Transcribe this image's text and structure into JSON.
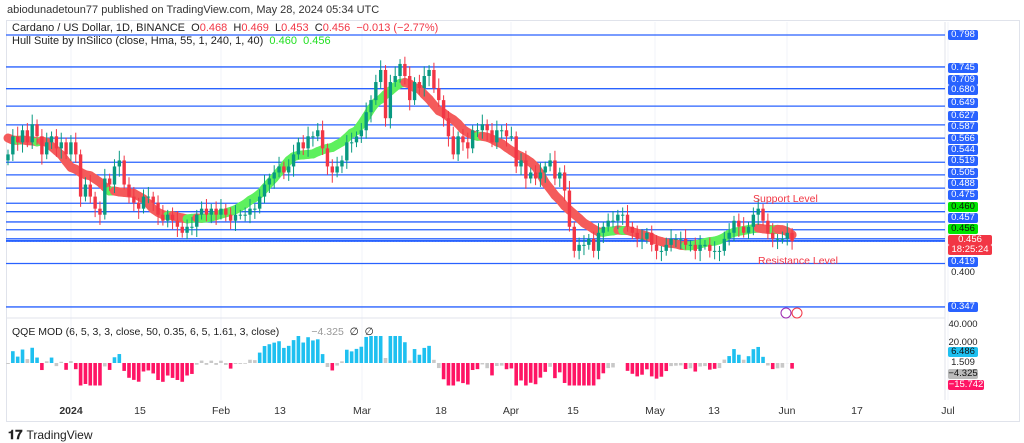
{
  "publisher_line": "abiodunadetoun77 published on TradingView.com, May 28, 2024 05:34 UTC",
  "symbol": {
    "name": "Cardano / US Dollar, 1D, BINANCE",
    "o_label": "O",
    "o": "0.468",
    "h_label": "H",
    "h": "0.469",
    "l_label": "L",
    "l": "0.453",
    "c_label": "C",
    "c": "0.456",
    "change": "−0.013 (−2.77%)"
  },
  "hull": {
    "name": "Hull Suite by InSilico (close, Hma, 55, 1, 240, 1, 40)",
    "v1": "0.460",
    "v2": "0.456"
  },
  "qqe": {
    "name": "QQE MOD (6, 5, 3, 3, close, 50, 0.35, 6, 5, 1.61, 3, close)",
    "value": "−4.325",
    "na1": "∅",
    "na2": "∅"
  },
  "annotations": {
    "support": "Support Level",
    "resistance": "Resistance Level"
  },
  "price_labels": [
    {
      "text": "0.798",
      "kind": "level"
    },
    {
      "text": "0.745",
      "kind": "level"
    },
    {
      "text": "0.709",
      "kind": "level"
    },
    {
      "text": "0.680",
      "kind": "level"
    },
    {
      "text": "0.649",
      "kind": "level"
    },
    {
      "text": "0.627",
      "kind": "level"
    },
    {
      "text": "0.587",
      "kind": "level"
    },
    {
      "text": "0.566",
      "kind": "level"
    },
    {
      "text": "0.544",
      "kind": "level"
    },
    {
      "text": "0.519",
      "kind": "level"
    },
    {
      "text": "0.505",
      "kind": "level"
    },
    {
      "text": "0.488",
      "kind": "level"
    },
    {
      "text": "0.475",
      "kind": "level"
    },
    {
      "text": "0.460",
      "kind": "hull"
    },
    {
      "text": "0.457",
      "kind": "level"
    },
    {
      "text": "0.456",
      "kind": "hull"
    },
    {
      "text": "0.456",
      "kind": "last"
    },
    {
      "text": "18:25:24",
      "kind": "countdown"
    },
    {
      "text": "0.419",
      "kind": "level"
    },
    {
      "text": "0.400",
      "kind": "axis"
    },
    {
      "text": "0.347",
      "kind": "level"
    }
  ],
  "qqe_labels": [
    {
      "text": "40.000",
      "kind": "axis"
    },
    {
      "text": "20.000",
      "kind": "axis"
    },
    {
      "text": "6.486",
      "kind": "blue"
    },
    {
      "text": "1.509",
      "kind": "axis"
    },
    {
      "text": "−4.325",
      "kind": "gray"
    },
    {
      "text": "−15.742",
      "kind": "pink"
    }
  ],
  "x_ticks": [
    "2024",
    "15",
    "Feb",
    "13",
    "Mar",
    "18",
    "Apr",
    "15",
    "May",
    "13",
    "Jun",
    "17",
    "Jul"
  ],
  "footer": "TradingView",
  "colors": {
    "up": "#089981",
    "down": "#f23645",
    "level": "#2962ff",
    "hull_up": "#5ef05e",
    "hull_down": "#f45b5b",
    "qqe_blue": "#1ec0f0",
    "qqe_pink": "#ff1464",
    "qqe_gray": "#c8c8c8"
  },
  "chart_data": {
    "type": "candlestick",
    "title": "Cardano / US Dollar, 1D, BINANCE",
    "start_date": "2023-12-18",
    "closes": [
      0.6,
      0.63,
      0.62,
      0.64,
      0.62,
      0.65,
      0.63,
      0.6,
      0.62,
      0.63,
      0.61,
      0.62,
      0.6,
      0.62,
      0.6,
      0.53,
      0.55,
      0.53,
      0.51,
      0.5,
      0.56,
      0.55,
      0.58,
      0.59,
      0.55,
      0.53,
      0.52,
      0.51,
      0.53,
      0.53,
      0.52,
      0.5,
      0.49,
      0.5,
      0.49,
      0.48,
      0.47,
      0.48,
      0.48,
      0.5,
      0.51,
      0.5,
      0.51,
      0.5,
      0.51,
      0.5,
      0.49,
      0.5,
      0.5,
      0.5,
      0.51,
      0.51,
      0.53,
      0.55,
      0.56,
      0.57,
      0.58,
      0.57,
      0.58,
      0.6,
      0.62,
      0.61,
      0.63,
      0.63,
      0.64,
      0.61,
      0.58,
      0.57,
      0.58,
      0.59,
      0.62,
      0.62,
      0.63,
      0.64,
      0.67,
      0.69,
      0.72,
      0.74,
      0.66,
      0.72,
      0.73,
      0.75,
      0.73,
      0.69,
      0.72,
      0.71,
      0.73,
      0.74,
      0.71,
      0.69,
      0.66,
      0.63,
      0.6,
      0.63,
      0.62,
      0.61,
      0.64,
      0.64,
      0.65,
      0.64,
      0.62,
      0.64,
      0.64,
      0.63,
      0.63,
      0.58,
      0.59,
      0.56,
      0.57,
      0.56,
      0.57,
      0.58,
      0.59,
      0.56,
      0.57,
      0.54,
      0.48,
      0.44,
      0.45,
      0.45,
      0.46,
      0.44,
      0.47,
      0.48,
      0.49,
      0.49,
      0.5,
      0.5,
      0.48,
      0.47,
      0.46,
      0.46,
      0.47,
      0.45,
      0.44,
      0.44,
      0.45,
      0.46,
      0.46,
      0.46,
      0.45,
      0.45,
      0.44,
      0.45,
      0.45,
      0.44,
      0.44,
      0.44,
      0.46,
      0.47,
      0.49,
      0.48,
      0.47,
      0.48,
      0.5,
      0.51,
      0.49,
      0.47,
      0.46,
      0.46,
      0.46,
      0.47,
      0.456
    ],
    "horizontal_levels": [
      0.798,
      0.745,
      0.709,
      0.68,
      0.649,
      0.627,
      0.587,
      0.566,
      0.544,
      0.519,
      0.505,
      0.488,
      0.475,
      0.46,
      0.457,
      0.456,
      0.419,
      0.347
    ],
    "ylim": [
      0.33,
      0.82
    ],
    "qqe_ylim": [
      -30,
      40
    ]
  }
}
